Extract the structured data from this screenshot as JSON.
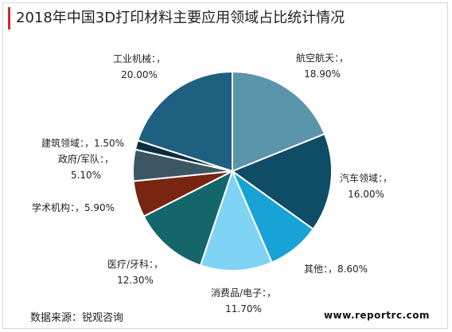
{
  "title": "2018年中国3D打印材料主要应用领域占比统计情况",
  "source": "数据来源：锐观咨询",
  "website": "www.reportrc.com",
  "chart_data": {
    "type": "pie",
    "title": "2018年中国3D打印材料主要应用领域占比统计情况",
    "slices": [
      {
        "name": "航空航天",
        "value": 18.9,
        "label_name": "航空航天：，",
        "label_value": "18.90%",
        "color": "#5b95ab"
      },
      {
        "name": "汽车领域",
        "value": 16.0,
        "label_name": "汽车领域：，",
        "label_value": "16.00%",
        "color": "#0f4c66"
      },
      {
        "name": "其他",
        "value": 8.6,
        "label_name": "其他：，8.60%",
        "label_value": "",
        "color": "#17a3d6"
      },
      {
        "name": "消费品/电子",
        "value": 11.7,
        "label_name": "消费品/电子：，",
        "label_value": "11.70%",
        "color": "#7fd3f4"
      },
      {
        "name": "医疗/牙科",
        "value": 12.3,
        "label_name": "医疗/牙科：，",
        "label_value": "12.30%",
        "color": "#13666a"
      },
      {
        "name": "学术机构",
        "value": 5.9,
        "label_name": "学术机构：，5.90%",
        "label_value": "",
        "color": "#7a2412"
      },
      {
        "name": "政府/军队",
        "value": 5.1,
        "label_name": "政府/军队：，",
        "label_value": "5.10%",
        "color": "#3c5664"
      },
      {
        "name": "建筑领域",
        "value": 1.5,
        "label_name": "建筑领域：，1.50%",
        "label_value": "",
        "color": "#0c2d3f"
      },
      {
        "name": "工业机械",
        "value": 20.0,
        "label_name": "工业机械：，",
        "label_value": "20.00%",
        "color": "#1f5f80"
      }
    ]
  }
}
